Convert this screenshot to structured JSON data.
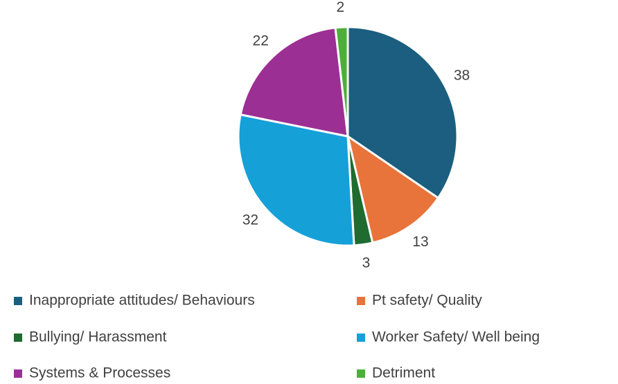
{
  "chart_data": {
    "type": "pie",
    "categories": [
      "Inappropriate attitudes/ Behaviours",
      "Pt safety/ Quality",
      "Bullying/ Harassment",
      "Worker Safety/ Well being",
      "Systems & Processes",
      "Detriment"
    ],
    "values": [
      38,
      13,
      3,
      32,
      22,
      2
    ],
    "colors": [
      "#1b5e7f",
      "#e8743b",
      "#1f6b30",
      "#15a0d8",
      "#9c2f94",
      "#4eae3c"
    ],
    "legend": "bottom"
  }
}
